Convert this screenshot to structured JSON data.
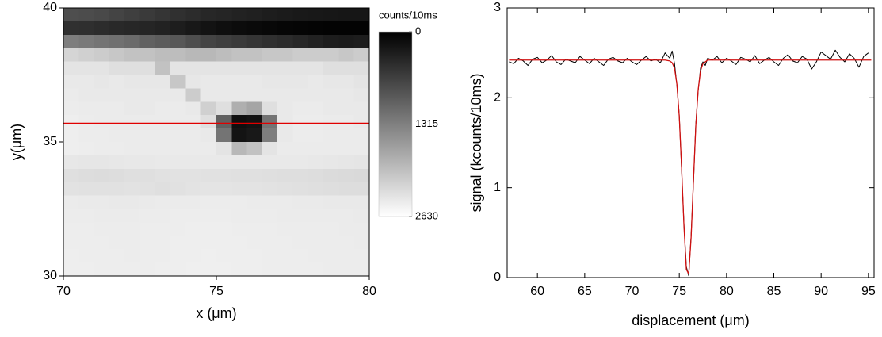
{
  "chart_data": [
    {
      "type": "heatmap",
      "xlabel": "x (μm)",
      "ylabel": "y(μm)",
      "xlim": [
        70,
        80
      ],
      "ylim": [
        30,
        40
      ],
      "xticks": [
        70,
        75,
        80
      ],
      "yticks": [
        30,
        35,
        40
      ],
      "colorbar_label": "counts/10ms",
      "zlim": [
        0,
        2630
      ],
      "zticks": [
        0,
        1315,
        2630
      ],
      "cut_y": 35.7,
      "cut_color": "#e00000",
      "z": [
        [
          800,
          780,
          750,
          700,
          650,
          600,
          550,
          500,
          450,
          400,
          380,
          350,
          330,
          300,
          280,
          260,
          250,
          240,
          230,
          230
        ],
        [
          500,
          480,
          450,
          420,
          400,
          380,
          350,
          300,
          250,
          200,
          150,
          120,
          100,
          80,
          60,
          50,
          40,
          30,
          30,
          30
        ],
        [
          1300,
          1250,
          1200,
          1150,
          1100,
          1000,
          950,
          900,
          800,
          700,
          650,
          600,
          550,
          500,
          450,
          400,
          350,
          300,
          280,
          300
        ],
        [
          2200,
          2150,
          2100,
          2050,
          2000,
          2000,
          1950,
          1950,
          1900,
          1900,
          1950,
          2000,
          2000,
          2050,
          2050,
          2100,
          2100,
          2100,
          2050,
          2100
        ],
        [
          2350,
          2350,
          2350,
          2300,
          2300,
          2300,
          2000,
          2350,
          2350,
          2350,
          2350,
          2350,
          2350,
          2350,
          2350,
          2350,
          2350,
          2300,
          2300,
          2300
        ],
        [
          2400,
          2400,
          2380,
          2400,
          2380,
          2380,
          2380,
          2050,
          2380,
          2400,
          2400,
          2400,
          2400,
          2380,
          2380,
          2380,
          2400,
          2380,
          2380,
          2350
        ],
        [
          2420,
          2400,
          2400,
          2400,
          2400,
          2400,
          2400,
          2400,
          2100,
          2400,
          2400,
          2400,
          2400,
          2400,
          2400,
          2400,
          2400,
          2400,
          2400,
          2380
        ],
        [
          2430,
          2420,
          2420,
          2420,
          2400,
          2400,
          2420,
          2420,
          2400,
          2150,
          2300,
          1800,
          1700,
          2300,
          2400,
          2420,
          2420,
          2400,
          2400,
          2400
        ],
        [
          2450,
          2430,
          2420,
          2420,
          2420,
          2420,
          2420,
          2420,
          2420,
          2300,
          1000,
          150,
          200,
          1200,
          2400,
          2430,
          2430,
          2420,
          2420,
          2400
        ],
        [
          2450,
          2430,
          2430,
          2420,
          2420,
          2420,
          2420,
          2420,
          2420,
          2400,
          1200,
          200,
          250,
          1300,
          2400,
          2430,
          2430,
          2420,
          2420,
          2420
        ],
        [
          2450,
          2440,
          2430,
          2430,
          2420,
          2420,
          2420,
          2420,
          2420,
          2420,
          2350,
          1900,
          2000,
          2350,
          2420,
          2420,
          2420,
          2420,
          2420,
          2420
        ],
        [
          2380,
          2370,
          2370,
          2380,
          2390,
          2390,
          2400,
          2400,
          2400,
          2400,
          2400,
          2400,
          2400,
          2400,
          2400,
          2400,
          2390,
          2380,
          2370,
          2360
        ],
        [
          2300,
          2280,
          2270,
          2280,
          2300,
          2300,
          2320,
          2330,
          2330,
          2320,
          2320,
          2310,
          2310,
          2300,
          2290,
          2290,
          2280,
          2260,
          2250,
          2240
        ],
        [
          2330,
          2320,
          2320,
          2320,
          2330,
          2320,
          2300,
          2320,
          2340,
          2350,
          2350,
          2340,
          2340,
          2330,
          2320,
          2310,
          2300,
          2290,
          2280,
          2280
        ],
        [
          2420,
          2410,
          2410,
          2400,
          2400,
          2410,
          2420,
          2420,
          2420,
          2430,
          2430,
          2430,
          2420,
          2420,
          2420,
          2410,
          2410,
          2400,
          2400,
          2400
        ],
        [
          2430,
          2430,
          2420,
          2420,
          2420,
          2430,
          2430,
          2440,
          2440,
          2440,
          2440,
          2430,
          2430,
          2430,
          2420,
          2420,
          2420,
          2420,
          2420,
          2410
        ],
        [
          2440,
          2440,
          2430,
          2430,
          2430,
          2440,
          2440,
          2440,
          2450,
          2450,
          2450,
          2440,
          2440,
          2440,
          2430,
          2430,
          2430,
          2430,
          2420,
          2420
        ],
        [
          2440,
          2440,
          2440,
          2430,
          2430,
          2440,
          2440,
          2450,
          2450,
          2450,
          2450,
          2450,
          2440,
          2440,
          2440,
          2430,
          2430,
          2430,
          2430,
          2420
        ],
        [
          2450,
          2440,
          2440,
          2440,
          2430,
          2440,
          2440,
          2450,
          2450,
          2460,
          2450,
          2450,
          2450,
          2440,
          2440,
          2440,
          2430,
          2430,
          2430,
          2430
        ],
        [
          2450,
          2450,
          2440,
          2440,
          2440,
          2440,
          2450,
          2450,
          2460,
          2460,
          2460,
          2450,
          2450,
          2440,
          2440,
          2440,
          2440,
          2430,
          2430,
          2430
        ]
      ]
    },
    {
      "type": "line",
      "xlabel": "displacement (μm)",
      "ylabel": "signal (kcounts/10ms)",
      "xlim": [
        56.8,
        95.6
      ],
      "ylim": [
        0,
        3
      ],
      "xticks": [
        60,
        65,
        70,
        75,
        80,
        85,
        90,
        95
      ],
      "yticks": [
        0,
        1,
        2,
        3
      ],
      "series": [
        {
          "color": "#000000",
          "x": [
            57,
            57.5,
            58,
            58.5,
            59,
            59.5,
            60,
            60.5,
            61,
            61.5,
            62,
            62.5,
            63,
            63.5,
            64,
            64.5,
            65,
            65.5,
            66,
            66.5,
            67,
            67.5,
            68,
            68.5,
            69,
            69.5,
            70,
            70.5,
            71,
            71.5,
            72,
            72.5,
            73,
            73.5,
            74,
            74.25,
            74.5,
            74.75,
            75,
            75.25,
            75.5,
            75.75,
            76,
            76.25,
            76.5,
            76.75,
            77,
            77.25,
            77.5,
            77.75,
            78,
            78.5,
            79,
            79.5,
            80,
            80.5,
            81,
            81.5,
            82,
            82.5,
            83,
            83.5,
            84,
            84.5,
            85,
            85.5,
            86,
            86.5,
            87,
            87.5,
            88,
            88.5,
            89,
            89.5,
            90,
            90.5,
            91,
            91.5,
            92,
            92.5,
            93,
            93.5,
            94,
            94.5,
            95
          ],
          "values": [
            2.4,
            2.38,
            2.44,
            2.41,
            2.36,
            2.43,
            2.45,
            2.39,
            2.42,
            2.47,
            2.4,
            2.37,
            2.43,
            2.41,
            2.39,
            2.46,
            2.42,
            2.38,
            2.44,
            2.4,
            2.36,
            2.43,
            2.45,
            2.41,
            2.39,
            2.44,
            2.4,
            2.37,
            2.42,
            2.46,
            2.41,
            2.43,
            2.39,
            2.5,
            2.44,
            2.52,
            2.38,
            2.14,
            1.8,
            1.19,
            0.58,
            0.12,
            0.02,
            0.46,
            1.06,
            1.71,
            2.08,
            2.33,
            2.4,
            2.36,
            2.44,
            2.42,
            2.46,
            2.39,
            2.44,
            2.41,
            2.37,
            2.45,
            2.43,
            2.4,
            2.47,
            2.38,
            2.42,
            2.45,
            2.4,
            2.36,
            2.44,
            2.48,
            2.41,
            2.39,
            2.46,
            2.43,
            2.32,
            2.4,
            2.51,
            2.47,
            2.43,
            2.53,
            2.45,
            2.4,
            2.49,
            2.44,
            2.34,
            2.46,
            2.5
          ]
        },
        {
          "color": "#d01010",
          "x": [
            57,
            73.5,
            74,
            74.25,
            74.5,
            74.75,
            75,
            75.25,
            75.5,
            75.75,
            76,
            76.25,
            76.5,
            76.75,
            77,
            77.25,
            77.5,
            78,
            95.3
          ],
          "values": [
            2.42,
            2.42,
            2.41,
            2.39,
            2.33,
            2.15,
            1.79,
            1.21,
            0.56,
            0.09,
            0.04,
            0.44,
            1.08,
            1.69,
            2.09,
            2.3,
            2.38,
            2.42,
            2.42
          ]
        }
      ]
    }
  ]
}
